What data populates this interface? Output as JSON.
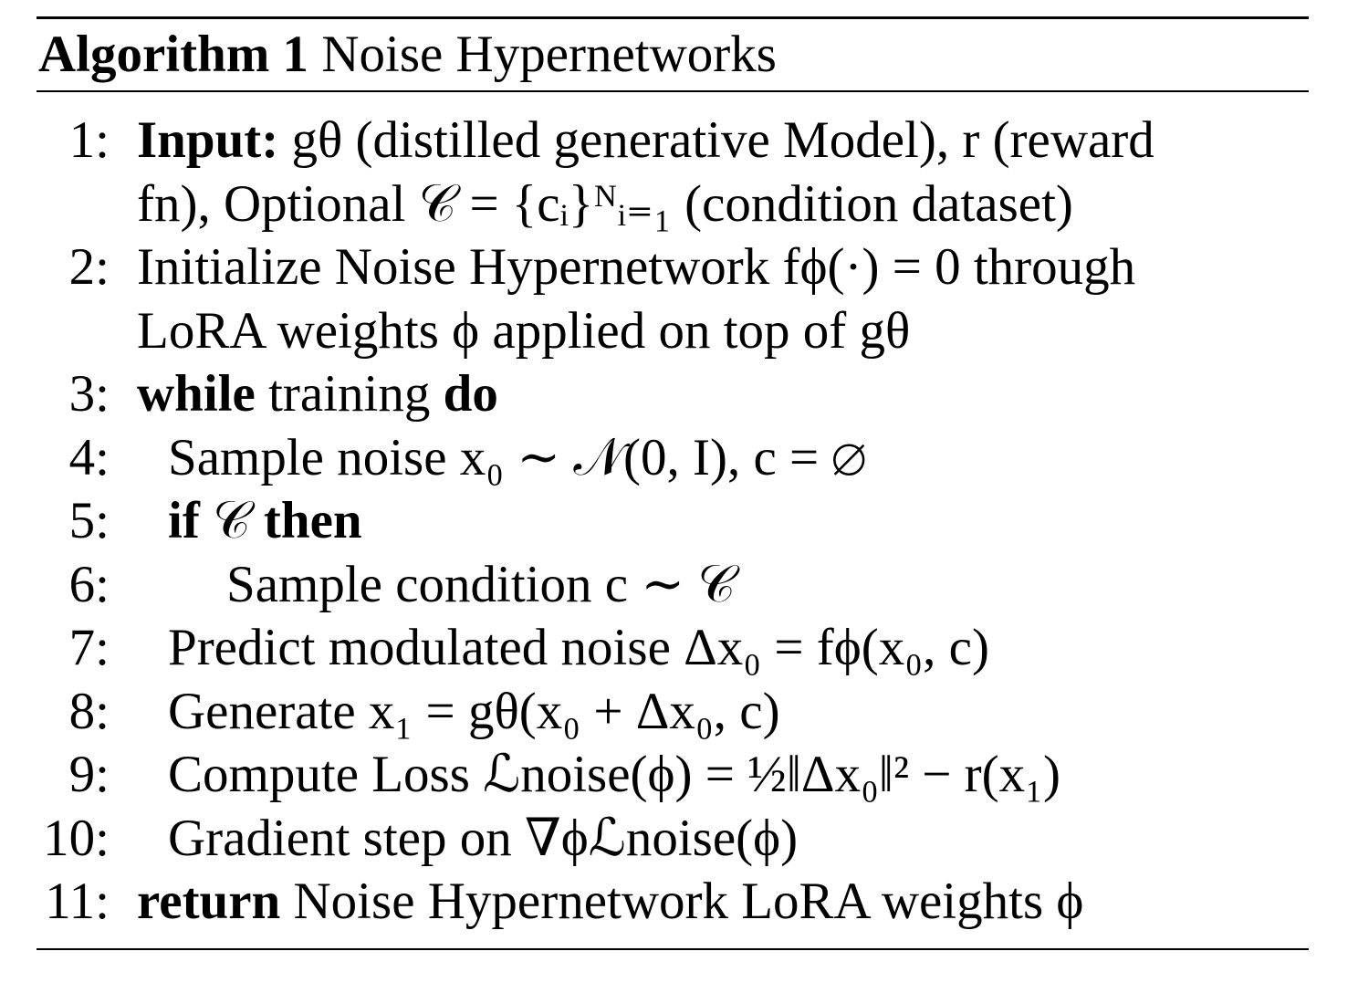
{
  "algorithm": {
    "label": "Algorithm 1",
    "title": "Noise Hypernetworks",
    "lines": [
      {
        "num": "1:",
        "keyword": "Input:",
        "text": " gθ (distilled generative Model), r (reward"
      },
      {
        "num": "",
        "keyword": "",
        "text": "fn), Optional 𝒞 = {cᵢ}ᴺᵢ₌₁ (condition dataset)"
      },
      {
        "num": "2:",
        "keyword": "",
        "text": "Initialize Noise Hypernetwork fϕ(·) = 0 through"
      },
      {
        "num": "",
        "keyword": "",
        "text": "LoRA weights ϕ applied on top of gθ"
      },
      {
        "num": "3:",
        "keyword": "while",
        "text": " training ",
        "keyword2": "do"
      },
      {
        "num": "4:",
        "keyword": "",
        "text": "Sample noise x₀ ∼ 𝒩(0, I), c = ∅"
      },
      {
        "num": "5:",
        "keyword": "if",
        "text": " 𝒞 ",
        "keyword2": "then"
      },
      {
        "num": "6:",
        "keyword": "",
        "text": "Sample condition  c ∼ 𝒞"
      },
      {
        "num": "7:",
        "keyword": "",
        "text": "Predict modulated noise Δx₀ = fϕ(x₀, c)"
      },
      {
        "num": "8:",
        "keyword": "",
        "text": "Generate x₁ = gθ(x₀ + Δx₀, c)"
      },
      {
        "num": "9:",
        "keyword": "",
        "text": "Compute Loss ℒnoise(ϕ) = ½‖Δx₀‖² − r(x₁)"
      },
      {
        "num": "10:",
        "keyword": "",
        "text": "Gradient step on ∇ϕℒnoise(ϕ)"
      },
      {
        "num": "11:",
        "keyword": "return",
        "text": "  Noise Hypernetwork LoRA weights ϕ"
      }
    ]
  }
}
